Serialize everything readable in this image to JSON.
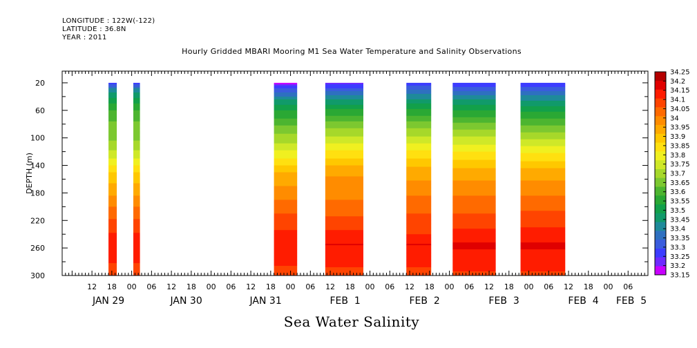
{
  "chart_data": {
    "type": "heatmap",
    "meta": [
      "LONGITUDE : 122W(-122)",
      "LATITUDE : 36.8N",
      "YEAR : 2011"
    ],
    "title": "Hourly Gridded MBARI Mooring M1 Sea Water Temperature and Salinity Observations",
    "subtitle": "Sea Water Salinity",
    "ylabel": "DEPTH (m)",
    "ylim": [
      300,
      3
    ],
    "y_ticks": [
      20,
      60,
      100,
      140,
      180,
      220,
      260,
      300
    ],
    "x_unit": "hours since JAN 29 00",
    "xlim": [
      3,
      180
    ],
    "x_ticks": [
      {
        "x": 12,
        "label": "12"
      },
      {
        "x": 18,
        "label": "18"
      },
      {
        "x": 24,
        "label": "00"
      },
      {
        "x": 30,
        "label": "06"
      },
      {
        "x": 36,
        "label": "12"
      },
      {
        "x": 42,
        "label": "18"
      },
      {
        "x": 48,
        "label": "00"
      },
      {
        "x": 54,
        "label": "06"
      },
      {
        "x": 60,
        "label": "12"
      },
      {
        "x": 66,
        "label": "18"
      },
      {
        "x": 72,
        "label": "00"
      },
      {
        "x": 78,
        "label": "06"
      },
      {
        "x": 84,
        "label": "12"
      },
      {
        "x": 90,
        "label": "18"
      },
      {
        "x": 96,
        "label": "00"
      },
      {
        "x": 102,
        "label": "06"
      },
      {
        "x": 108,
        "label": "12"
      },
      {
        "x": 114,
        "label": "18"
      },
      {
        "x": 120,
        "label": "00"
      },
      {
        "x": 126,
        "label": "06"
      },
      {
        "x": 132,
        "label": "12"
      },
      {
        "x": 138,
        "label": "18"
      },
      {
        "x": 144,
        "label": "00"
      },
      {
        "x": 150,
        "label": "06"
      },
      {
        "x": 156,
        "label": "12"
      },
      {
        "x": 162,
        "label": "18"
      },
      {
        "x": 168,
        "label": "00"
      },
      {
        "x": 174,
        "label": "06"
      }
    ],
    "day_labels": [
      {
        "x": 17,
        "label": "JAN 29"
      },
      {
        "x": 40.5,
        "label": "JAN 30"
      },
      {
        "x": 64.5,
        "label": "JAN 31"
      },
      {
        "x": 88.5,
        "label": "FEB  1"
      },
      {
        "x": 112.5,
        "label": "FEB  2"
      },
      {
        "x": 136.5,
        "label": "FEB  3"
      },
      {
        "x": 160.5,
        "label": "FEB  4"
      },
      {
        "x": 175,
        "label": "FEB  5"
      }
    ],
    "levels": [
      33.15,
      33.2,
      33.25,
      33.3,
      33.35,
      33.4,
      33.45,
      33.5,
      33.55,
      33.6,
      33.65,
      33.7,
      33.75,
      33.8,
      33.85,
      33.9,
      33.95,
      34,
      34.05,
      34.1,
      34.15,
      34.2,
      34.25
    ],
    "level_labels": [
      "33.15",
      "33.2",
      "33.25",
      "33.3",
      "33.35",
      "33.4",
      "33.45",
      "33.5",
      "33.55",
      "33.6",
      "33.65",
      "33.7",
      "33.75",
      "33.8",
      "33.85",
      "33.9",
      "33.95",
      "34",
      "34.05",
      "34.1",
      "34.15",
      "34.2",
      "34.25"
    ],
    "colors": [
      "#c800ff",
      "#6e2aff",
      "#3c3cff",
      "#3a5cdd",
      "#2e70c0",
      "#1e8a9a",
      "#119a6a",
      "#12a04a",
      "#2aa834",
      "#4db530",
      "#7cc830",
      "#a6d82a",
      "#cfe828",
      "#f0f020",
      "#ffe010",
      "#ffc800",
      "#ffaa00",
      "#ff8c00",
      "#ff6a00",
      "#ff4400",
      "#ff1c00",
      "#e00000",
      "#b40000"
    ],
    "segments": [
      {
        "x": [
          17,
          19.5
        ],
        "profile": [
          [
            20,
            33.27
          ],
          [
            30,
            33.42
          ],
          [
            45,
            33.52
          ],
          [
            60,
            33.6
          ],
          [
            80,
            33.66
          ],
          [
            105,
            33.7
          ],
          [
            130,
            33.8
          ],
          [
            150,
            33.9
          ],
          [
            170,
            33.96
          ],
          [
            190,
            34.02
          ],
          [
            210,
            34.08
          ],
          [
            235,
            34.14
          ],
          [
            250,
            34.2
          ],
          [
            275,
            34.16
          ],
          [
            300,
            34.12
          ]
        ]
      },
      {
        "x": [
          24.5,
          26.5
        ],
        "profile": [
          [
            20,
            33.27
          ],
          [
            30,
            33.42
          ],
          [
            45,
            33.52
          ],
          [
            60,
            33.6
          ],
          [
            80,
            33.66
          ],
          [
            105,
            33.7
          ],
          [
            130,
            33.8
          ],
          [
            150,
            33.9
          ],
          [
            170,
            33.96
          ],
          [
            190,
            34.02
          ],
          [
            210,
            34.08
          ],
          [
            235,
            34.14
          ],
          [
            250,
            34.19
          ],
          [
            275,
            34.16
          ],
          [
            300,
            34.12
          ]
        ]
      },
      {
        "x": [
          67,
          74
        ],
        "profile": [
          [
            20,
            33.18
          ],
          [
            30,
            33.32
          ],
          [
            45,
            33.45
          ],
          [
            60,
            33.55
          ],
          [
            80,
            33.64
          ],
          [
            105,
            33.74
          ],
          [
            130,
            33.85
          ],
          [
            150,
            33.95
          ],
          [
            170,
            34.0
          ],
          [
            190,
            34.05
          ],
          [
            210,
            34.1
          ],
          [
            235,
            34.15
          ],
          [
            255,
            34.19
          ],
          [
            275,
            34.17
          ],
          [
            300,
            34.12
          ]
        ]
      },
      {
        "x": [
          82.5,
          94
        ],
        "profile": [
          [
            20,
            33.22
          ],
          [
            30,
            33.33
          ],
          [
            45,
            33.45
          ],
          [
            60,
            33.56
          ],
          [
            80,
            33.67
          ],
          [
            105,
            33.78
          ],
          [
            125,
            33.88
          ],
          [
            145,
            33.97
          ],
          [
            165,
            34.02
          ],
          [
            190,
            34.05
          ],
          [
            210,
            34.09
          ],
          [
            235,
            34.15
          ],
          [
            255,
            34.2
          ],
          [
            275,
            34.17
          ],
          [
            300,
            34.13
          ]
        ]
      },
      {
        "x": [
          107,
          114.5
        ],
        "profile": [
          [
            20,
            33.25
          ],
          [
            30,
            33.35
          ],
          [
            45,
            33.46
          ],
          [
            60,
            33.56
          ],
          [
            80,
            33.67
          ],
          [
            105,
            33.78
          ],
          [
            125,
            33.88
          ],
          [
            145,
            33.96
          ],
          [
            170,
            34.02
          ],
          [
            195,
            34.07
          ],
          [
            215,
            34.11
          ],
          [
            240,
            34.15
          ],
          [
            255,
            34.2
          ],
          [
            275,
            34.17
          ],
          [
            300,
            34.13
          ]
        ]
      },
      {
        "x": [
          121,
          134
        ],
        "profile": [
          [
            20,
            33.25
          ],
          [
            30,
            33.34
          ],
          [
            45,
            33.45
          ],
          [
            60,
            33.55
          ],
          [
            80,
            33.66
          ],
          [
            105,
            33.78
          ],
          [
            125,
            33.87
          ],
          [
            145,
            33.95
          ],
          [
            170,
            34.02
          ],
          [
            195,
            34.07
          ],
          [
            215,
            34.11
          ],
          [
            240,
            34.17
          ],
          [
            255,
            34.21
          ],
          [
            275,
            34.18
          ],
          [
            300,
            34.14
          ]
        ]
      },
      {
        "x": [
          141.5,
          155
        ],
        "profile": [
          [
            20,
            33.25
          ],
          [
            30,
            33.34
          ],
          [
            45,
            33.44
          ],
          [
            60,
            33.54
          ],
          [
            80,
            33.64
          ],
          [
            105,
            33.76
          ],
          [
            125,
            33.86
          ],
          [
            145,
            33.95
          ],
          [
            170,
            34.02
          ],
          [
            195,
            34.07
          ],
          [
            215,
            34.12
          ],
          [
            240,
            34.17
          ],
          [
            255,
            34.21
          ],
          [
            275,
            34.18
          ],
          [
            300,
            34.14
          ]
        ]
      }
    ]
  }
}
